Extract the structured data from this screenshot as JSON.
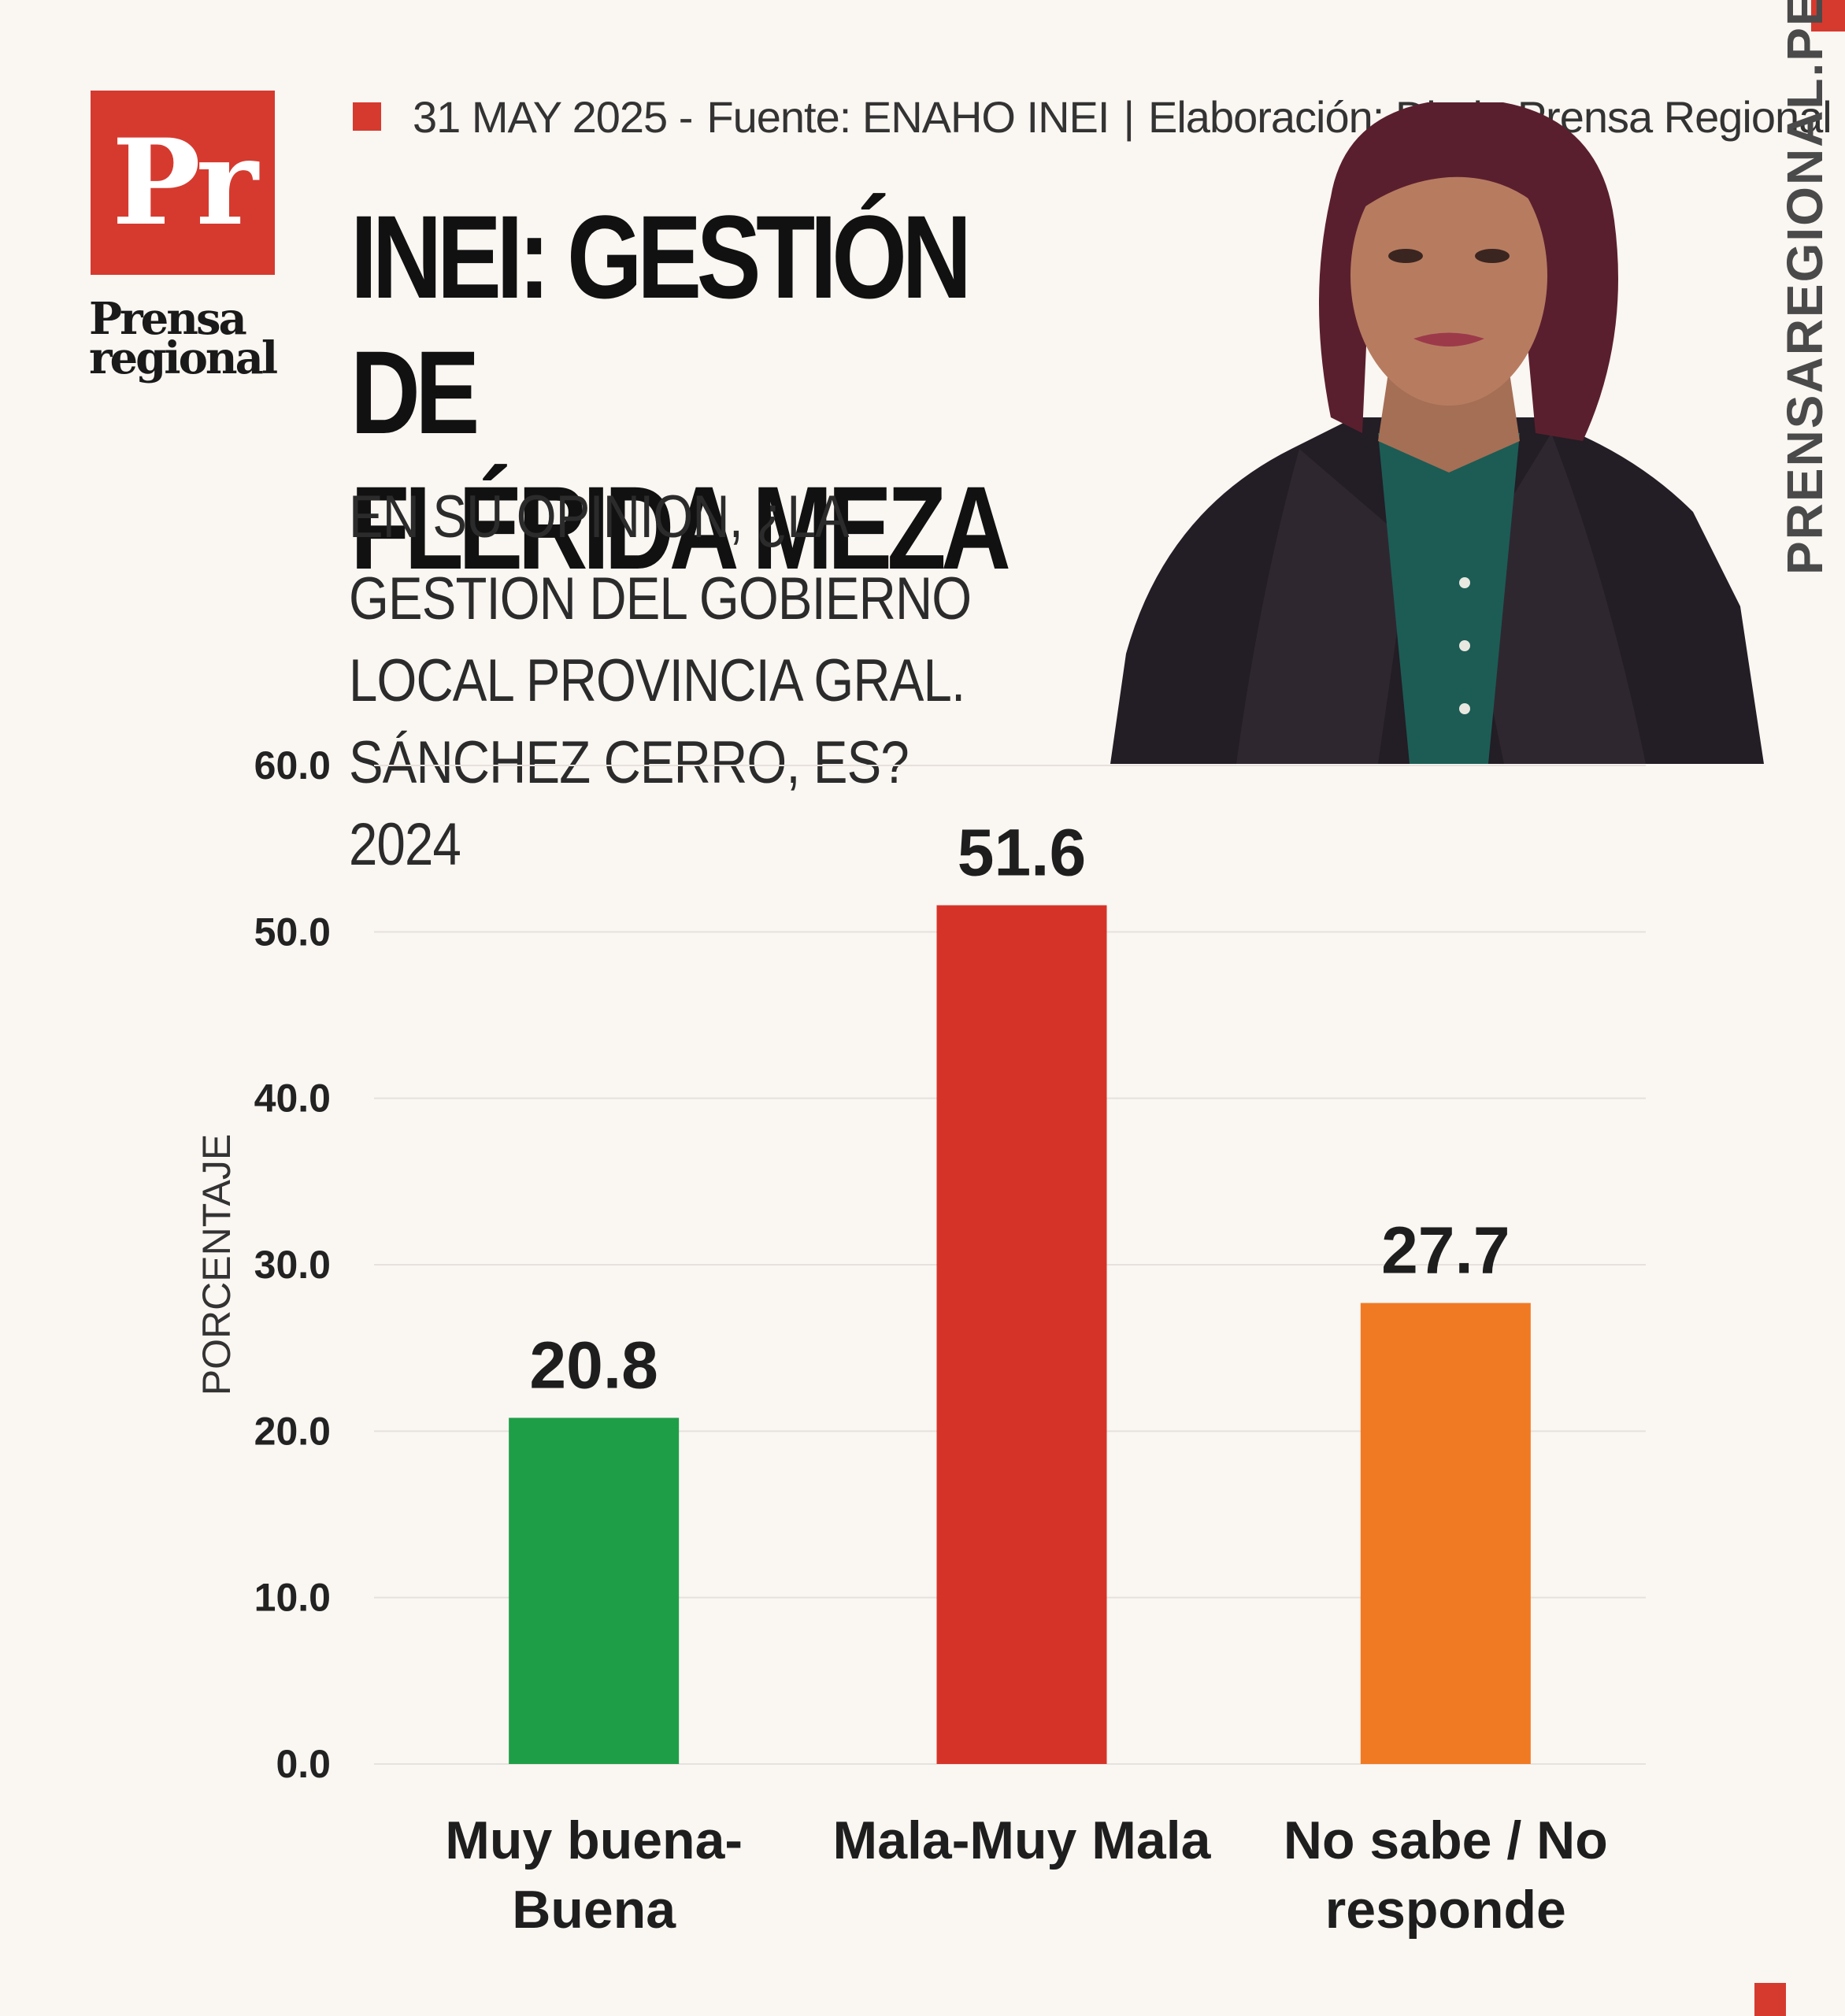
{
  "header": {
    "logo_mark": "Pr",
    "logo_name_line1": "Prensa",
    "logo_name_line2": "regional",
    "date": "31 MAY 2025 -",
    "source": "Fuente: ENAHO INEI",
    "separator": "|",
    "credit": "Elaboración: Diario Prensa Regional",
    "title_line1": "INEI: GESTIÓN DE",
    "title_line2": "FLÉRIDA MEZA",
    "subtitle": "EN SU OPINION, ¿LA GESTION DEL GOBIERNO LOCAL PROVINCIA GRAL. SÁNCHEZ CERRO, ES? 2024",
    "website": "PRENSAREGIONAL.PE"
  },
  "colors": {
    "brand_red": "#d63a2f",
    "green": "#1f9e48",
    "red": "#d63328",
    "orange": "#f07a23"
  },
  "chart_data": {
    "type": "bar",
    "categories": [
      "Muy buena-Buena",
      "Mala-Muy Mala",
      "No sabe / No responde"
    ],
    "category_lines": [
      [
        "Muy buena-",
        "Buena"
      ],
      [
        "Mala-Muy Mala"
      ],
      [
        "No sabe / No",
        "responde"
      ]
    ],
    "values": [
      20.8,
      51.6,
      27.7
    ],
    "value_labels": [
      "20.8",
      "51.6",
      "27.7"
    ],
    "bar_colors": [
      "#1f9e48",
      "#d63328",
      "#f07a23"
    ],
    "ylabel": "PORCENTAJE",
    "ylim": [
      0,
      60
    ],
    "yticks": [
      "0.0",
      "10.0",
      "20.0",
      "30.0",
      "40.0",
      "50.0",
      "60.0"
    ],
    "grid": true
  }
}
